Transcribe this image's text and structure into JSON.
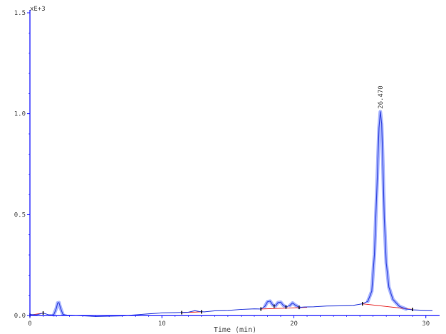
{
  "chart_data": {
    "type": "line",
    "title": "",
    "xlabel": "Time (min)",
    "ylabel": "",
    "y_multiplier_label": "xE+3",
    "xlim": [
      0,
      30.5
    ],
    "ylim": [
      0,
      1.5
    ],
    "x_ticks": [
      {
        "value": 0,
        "label": "0"
      },
      {
        "value": 10,
        "label": "10"
      },
      {
        "value": 20,
        "label": "20"
      },
      {
        "value": 30,
        "label": "30"
      }
    ],
    "y_ticks": [
      {
        "value": 0,
        "label": "0.0"
      },
      {
        "value": 0.5,
        "label": "0.5"
      },
      {
        "value": 1.0,
        "label": "1.0"
      },
      {
        "value": 1.5,
        "label": "1.5"
      }
    ],
    "grid": false,
    "colors": {
      "axis": "#1a1aff",
      "signal": "#3344dd",
      "peak_fill": "#99a8ff",
      "baseline": "#e83030",
      "markers": "#111111"
    },
    "series": [
      {
        "x": [
          0,
          0.5,
          1.0,
          1.4,
          1.8,
          2.0,
          2.1,
          2.2,
          2.3,
          2.5,
          2.8,
          3.5,
          5,
          7,
          9,
          10,
          11,
          12,
          12.5,
          12.8,
          13.2,
          14,
          15,
          16,
          17,
          17.5,
          17.8,
          18.0,
          18.2,
          18.4,
          18.6,
          18.8,
          19.0,
          19.2,
          19.4,
          19.7,
          19.9,
          20.1,
          20.4,
          20.8,
          21.5,
          22.5,
          23.5,
          24.5,
          25.2,
          25.6,
          25.9,
          26.1,
          26.3,
          26.45,
          26.55,
          26.65,
          26.75,
          26.85,
          27.0,
          27.2,
          27.5,
          28.0,
          28.5,
          29.0,
          30.0,
          30.5
        ],
        "y": [
          0.005,
          0.003,
          0.012,
          0.004,
          0.003,
          0.035,
          0.062,
          0.064,
          0.04,
          0.005,
          0.002,
          0.0,
          -0.005,
          -0.002,
          0.008,
          0.013,
          0.014,
          0.016,
          0.024,
          0.02,
          0.018,
          0.023,
          0.025,
          0.03,
          0.033,
          0.032,
          0.045,
          0.068,
          0.071,
          0.052,
          0.047,
          0.064,
          0.066,
          0.05,
          0.042,
          0.05,
          0.062,
          0.052,
          0.04,
          0.042,
          0.043,
          0.047,
          0.048,
          0.05,
          0.058,
          0.07,
          0.12,
          0.3,
          0.65,
          0.93,
          1.01,
          0.95,
          0.74,
          0.48,
          0.26,
          0.14,
          0.08,
          0.045,
          0.032,
          0.028,
          0.025,
          0.024
        ]
      }
    ],
    "peaks": [
      {
        "x": 2.15,
        "y_top": 0.064,
        "start": 1.8,
        "end": 2.6
      },
      {
        "x": 18.1,
        "y_top": 0.071,
        "start": 17.7,
        "end": 18.5
      },
      {
        "x": 18.9,
        "y_top": 0.066,
        "start": 18.5,
        "end": 19.4
      },
      {
        "x": 20.0,
        "y_top": 0.062,
        "start": 19.6,
        "end": 20.4
      },
      {
        "x": 26.55,
        "y_top": 1.01,
        "start": 25.6,
        "end": 28.5
      }
    ],
    "baselines": [
      {
        "x1": 0.0,
        "y1": 0.002,
        "x2": 1.0,
        "y2": 0.012
      },
      {
        "x1": 11.5,
        "y1": 0.014,
        "x2": 13.0,
        "y2": 0.018
      },
      {
        "x1": 17.5,
        "y1": 0.032,
        "x2": 21.0,
        "y2": 0.04
      },
      {
        "x1": 25.2,
        "y1": 0.058,
        "x2": 29.0,
        "y2": 0.03
      }
    ],
    "markers": [
      {
        "x": 0.0,
        "y": 0.002
      },
      {
        "x": 1.0,
        "y": 0.012
      },
      {
        "x": 11.5,
        "y": 0.014
      },
      {
        "x": 13.0,
        "y": 0.018
      },
      {
        "x": 17.5,
        "y": 0.032
      },
      {
        "x": 18.5,
        "y": 0.046
      },
      {
        "x": 19.4,
        "y": 0.042
      },
      {
        "x": 20.4,
        "y": 0.04
      },
      {
        "x": 25.2,
        "y": 0.058
      },
      {
        "x": 29.0,
        "y": 0.03
      }
    ],
    "annotations": [
      {
        "x": 26.55,
        "y": 1.01,
        "text": "26.470"
      }
    ]
  }
}
